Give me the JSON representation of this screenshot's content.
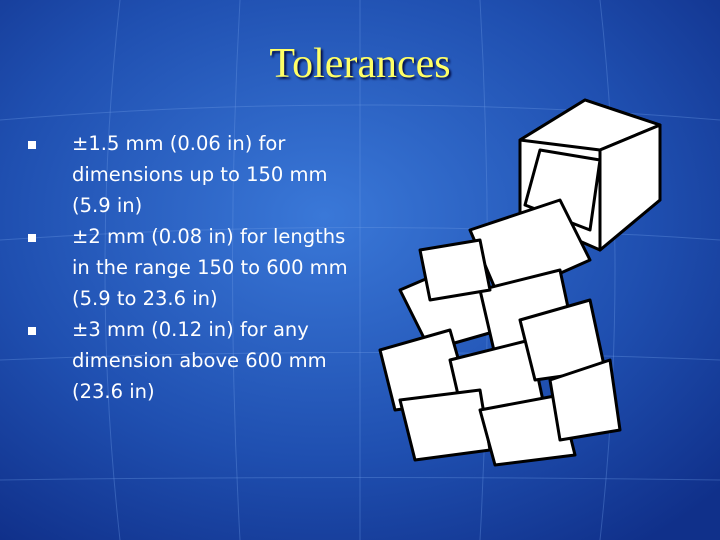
{
  "slide": {
    "title": "Tolerances",
    "bullets": [
      "±1.5 mm (0.06 in) for dimensions up to 150 mm (5.9 in)",
      "±2 mm (0.08 in) for lengths in the range 150 to 600 mm (5.9 to 23.6 in)",
      "±3 mm (0.12 in) for any dimension above 600 mm (23.6 in)"
    ]
  }
}
